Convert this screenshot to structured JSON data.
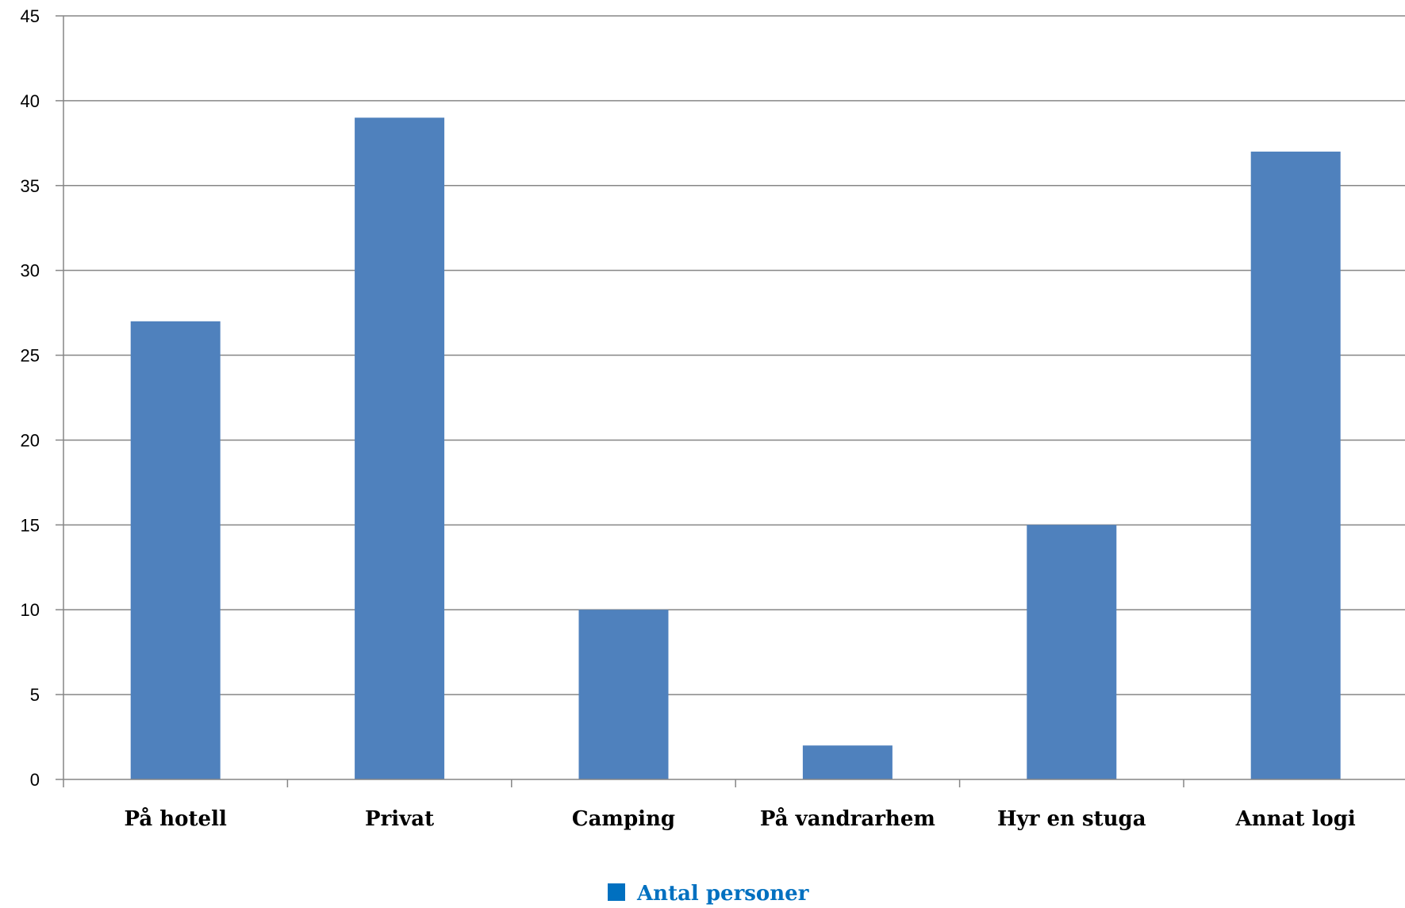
{
  "chart_data": {
    "type": "bar",
    "categories": [
      "På hotell",
      "Privat",
      "Camping",
      "På vandrarhem",
      "Hyr en stuga",
      "Annat logi"
    ],
    "series": [
      {
        "name": "Antal personer",
        "values": [
          27,
          39,
          10,
          2,
          15,
          37
        ],
        "color": "#4F81BD"
      }
    ],
    "ylim": [
      0,
      45
    ],
    "yticks": [
      "0",
      "5",
      "10",
      "15",
      "20",
      "25",
      "30",
      "35",
      "40",
      "45"
    ],
    "grid": true,
    "legend_position": "bottom",
    "legend_text_color": "#0070C0",
    "legend_swatch_color": "#0070C0"
  }
}
